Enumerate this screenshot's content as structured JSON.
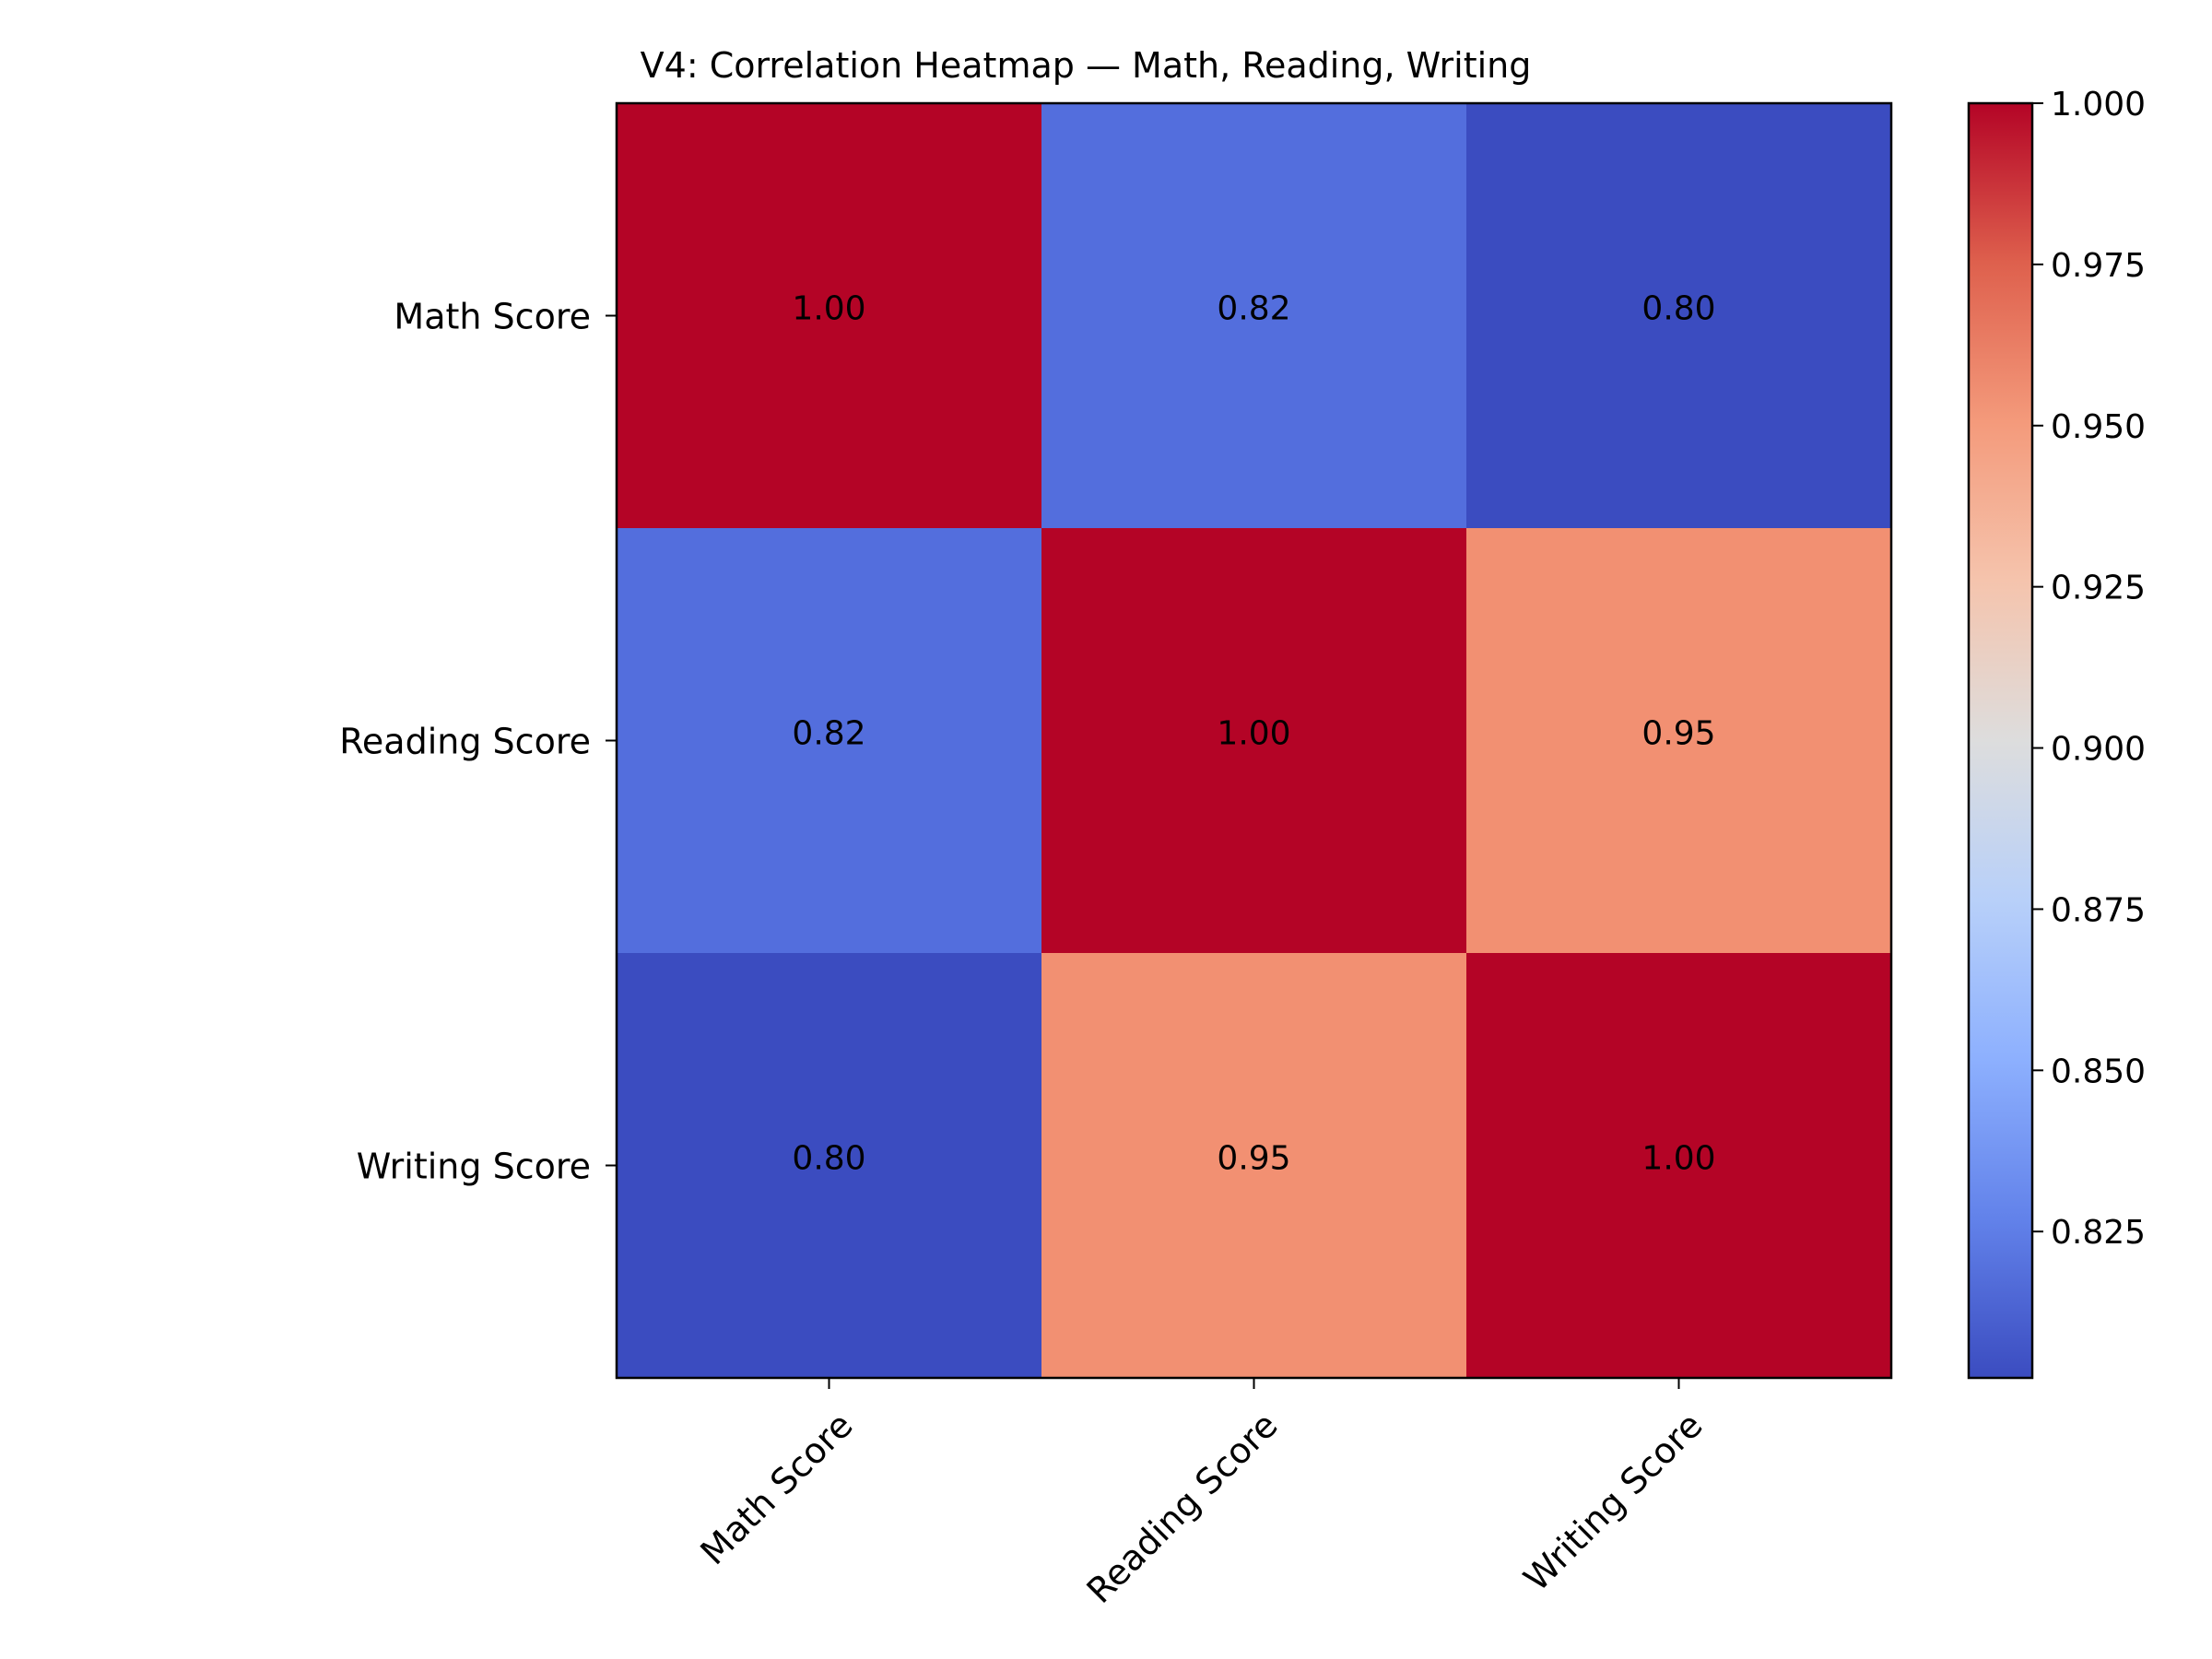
{
  "chart_data": {
    "type": "heatmap",
    "title": "V4: Correlation Heatmap — Math, Reading, Writing",
    "rows": [
      "Math Score",
      "Reading Score",
      "Writing Score"
    ],
    "columns": [
      "Math Score",
      "Reading Score",
      "Writing Score"
    ],
    "values": [
      [
        1.0,
        0.82,
        0.8
      ],
      [
        0.82,
        1.0,
        0.95
      ],
      [
        0.8,
        0.95,
        1.0
      ]
    ],
    "value_labels": [
      [
        "1.00",
        "0.82",
        "0.80"
      ],
      [
        "0.82",
        "1.00",
        "0.95"
      ],
      [
        "0.80",
        "0.95",
        "1.00"
      ]
    ],
    "colormap": "coolwarm",
    "color_range": [
      0.8023,
      1.0
    ],
    "colorbar": {
      "ticks": [
        0.825,
        0.85,
        0.875,
        0.9,
        0.925,
        0.95,
        0.975,
        1.0
      ],
      "tick_labels": [
        "0.825",
        "0.850",
        "0.875",
        "0.900",
        "0.925",
        "0.950",
        "0.975",
        "1.000"
      ]
    },
    "cell_colors": {
      "1.00": "#b40426",
      "0.95": "#f29072",
      "0.82": "#536edd",
      "0.80": "#3b4cc0"
    }
  }
}
